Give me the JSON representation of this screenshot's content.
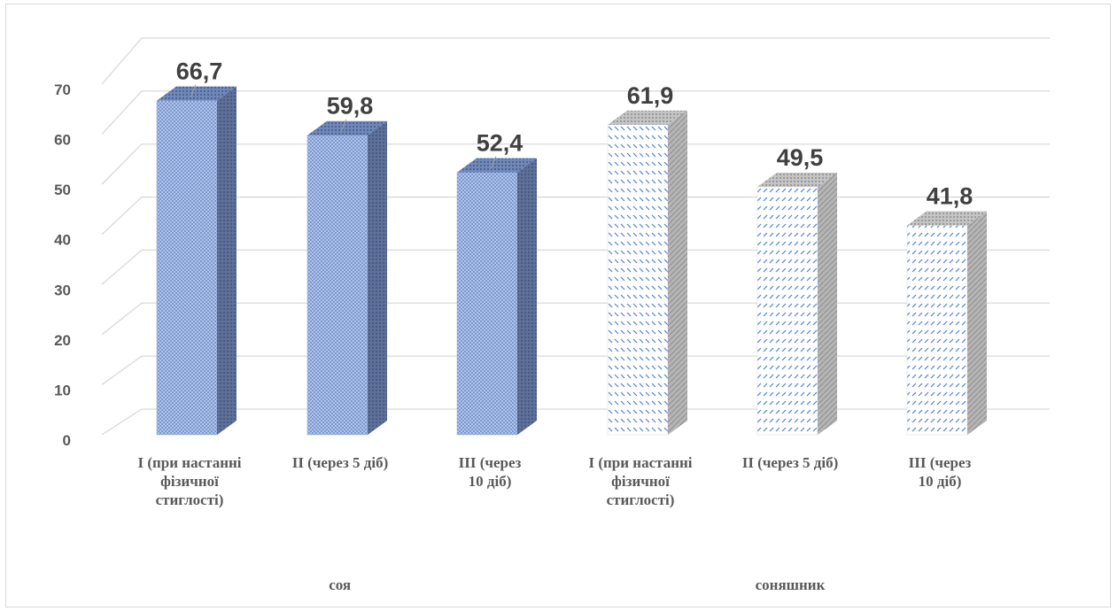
{
  "chart_data": {
    "type": "bar",
    "groups": [
      {
        "label": "соя",
        "categories": [
          "I (при настанні фізичної стиглості)",
          "II (через 5 діб)",
          "III (через\n10  діб)"
        ],
        "values": [
          66.7,
          59.8,
          52.4
        ]
      },
      {
        "label": "соняшник",
        "categories": [
          "I (при настанні фізичної стиглості)",
          "II (через 5 діб)",
          "III (через\n10  діб)"
        ],
        "values": [
          61.9,
          49.5,
          41.8
        ]
      }
    ],
    "value_labels": [
      "66,7",
      "59,8",
      "52,4",
      "61,9",
      "49,5",
      "41,8"
    ],
    "yticks": [
      "0",
      "10",
      "20",
      "30",
      "40",
      "50",
      "60",
      "70"
    ],
    "ylim": [
      0,
      70
    ],
    "grid": true,
    "style": "3d-column",
    "colors": {
      "soy_front": "#aabfe6",
      "soy_side": "#5a6d96",
      "soy_top": "#6b80b0",
      "sun_front": "#ffffff",
      "sun_side": "#b3b3b3",
      "sun_pattern": "#4f7fd0",
      "gridline": "#d9d9d9"
    }
  }
}
